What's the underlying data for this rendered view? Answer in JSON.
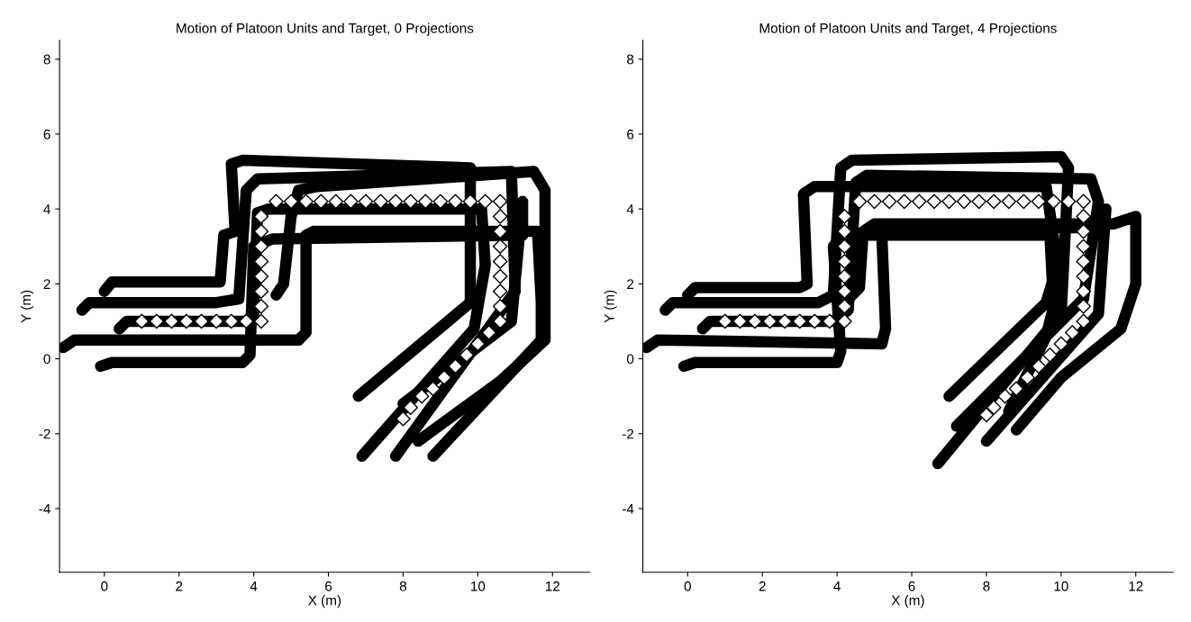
{
  "chart_data": [
    {
      "type": "line",
      "title": "Motion of Platoon Units and Target, 0 Projections",
      "xlabel": "X (m)",
      "ylabel": "Y (m)",
      "xlim": [
        -1.2,
        13
      ],
      "ylim": [
        -5.7,
        8.5
      ],
      "xticks": [
        0,
        2,
        4,
        6,
        8,
        10,
        12
      ],
      "yticks": [
        -4,
        -2,
        0,
        2,
        4,
        6,
        8
      ],
      "grid": false,
      "marker": "none",
      "line_style": "solid",
      "series": [
        {
          "type": "line",
          "color": "#000000",
          "x": [
            0,
            0.2,
            3.1,
            3.2,
            3.5,
            3.4,
            3.7,
            9.8,
            9.8,
            6.8
          ],
          "values": [
            1.8,
            2.05,
            2.05,
            3.3,
            3.4,
            5.2,
            5.3,
            5.1,
            1.5,
            -1.0
          ]
        },
        {
          "type": "line",
          "color": "#000000",
          "x": [
            -0.6,
            -0.4,
            3.0,
            3.6,
            3.8,
            4.1,
            10.9,
            11.0,
            7.8
          ],
          "values": [
            1.3,
            1.5,
            1.5,
            1.6,
            4.5,
            4.8,
            5.0,
            1.8,
            -2.6
          ]
        },
        {
          "type": "line",
          "color": "#000000",
          "x": [
            0.4,
            0.6,
            3.8,
            4.0,
            4.1,
            4.4,
            10.1,
            10.2,
            9.9,
            6.9
          ],
          "values": [
            0.8,
            1.0,
            1.0,
            1.2,
            3.9,
            4.0,
            4.0,
            2.5,
            0.8,
            -2.6
          ]
        },
        {
          "type": "line",
          "color": "#000000",
          "x": [
            -1.1,
            -0.8,
            5.2,
            5.4,
            5.4,
            5.6,
            11.6,
            11.7,
            11.7,
            8.8
          ],
          "values": [
            0.3,
            0.5,
            0.5,
            0.7,
            3.3,
            3.4,
            3.4,
            1.5,
            0.5,
            -2.6
          ]
        },
        {
          "type": "line",
          "color": "#000000",
          "x": [
            -0.1,
            0.2,
            3.7,
            3.9,
            4.0,
            4.5,
            11.2,
            11.2,
            10.9,
            8.0
          ],
          "values": [
            -0.2,
            -0.1,
            -0.1,
            0.1,
            3.0,
            3.2,
            3.3,
            4.2,
            1.0,
            -1.2
          ]
        },
        {
          "type": "line",
          "color": "#000000",
          "x": [
            4.6,
            4.8,
            5.0,
            5.2,
            5.7,
            11.5,
            11.8,
            11.8,
            10.6,
            8.4
          ],
          "values": [
            1.7,
            2.0,
            3.8,
            4.5,
            4.6,
            5.0,
            4.5,
            0.5,
            -0.6,
            -2.2
          ]
        },
        {
          "type": "scatter",
          "color": "#ffffff",
          "marker": "diamond",
          "x": [
            1,
            1.4,
            1.8,
            2.2,
            2.6,
            3,
            3.4,
            3.8,
            4.2,
            4.2,
            4.2,
            4.2,
            4.2,
            4.2,
            4.2,
            4.2,
            4.6,
            5,
            5.4,
            5.8,
            6.2,
            6.6,
            7,
            7.4,
            7.8,
            8.2,
            8.6,
            9,
            9.4,
            9.8,
            10.2,
            10.6,
            10.6,
            10.6,
            10.6,
            10.6,
            10.6,
            10.6,
            10.6,
            10.6,
            10.3,
            10,
            9.7,
            9.4,
            9.1,
            8.8,
            8.5,
            8.2,
            8
          ],
          "values": [
            1,
            1,
            1,
            1,
            1,
            1,
            1,
            1,
            1,
            1.4,
            1.8,
            2.2,
            2.6,
            3,
            3.4,
            3.8,
            4.2,
            4.2,
            4.2,
            4.2,
            4.2,
            4.2,
            4.2,
            4.2,
            4.2,
            4.2,
            4.2,
            4.2,
            4.2,
            4.2,
            4.2,
            4.2,
            3.8,
            3.4,
            3,
            2.6,
            2.2,
            1.8,
            1.4,
            1,
            0.7,
            0.4,
            0.1,
            -0.2,
            -0.5,
            -0.8,
            -1,
            -1.3,
            -1.6
          ]
        }
      ]
    },
    {
      "type": "line",
      "title": "Motion of Platoon Units and Target, 4 Projections",
      "xlabel": "X (m)",
      "ylabel": "Y (m)",
      "xlim": [
        -1.2,
        13
      ],
      "ylim": [
        -5.7,
        8.5
      ],
      "xticks": [
        0,
        2,
        4,
        6,
        8,
        10,
        12
      ],
      "yticks": [
        -4,
        -2,
        0,
        2,
        4,
        6,
        8
      ],
      "grid": false,
      "marker": "none",
      "line_style": "solid",
      "series": [
        {
          "type": "line",
          "color": "#000000",
          "x": [
            0,
            0.2,
            3.0,
            3.2,
            3.1,
            3.4,
            9.6,
            9.9,
            9.6,
            7.0
          ],
          "values": [
            1.7,
            1.9,
            1.9,
            2.0,
            4.4,
            4.6,
            4.6,
            2.5,
            1.5,
            -1.0
          ]
        },
        {
          "type": "line",
          "color": "#000000",
          "x": [
            -0.6,
            -0.4,
            3.5,
            3.9,
            4.1,
            4.4,
            10.0,
            10.2,
            10.0,
            6.7
          ],
          "values": [
            1.3,
            1.5,
            1.5,
            1.7,
            5.1,
            5.3,
            5.4,
            5.1,
            1.2,
            -2.8
          ]
        },
        {
          "type": "line",
          "color": "#000000",
          "x": [
            0.4,
            0.6,
            3.9,
            4.3,
            4.5,
            4.8,
            10.8,
            11.0,
            10.6,
            7.2
          ],
          "values": [
            0.8,
            1.0,
            1.0,
            1.3,
            4.7,
            4.9,
            4.8,
            4.2,
            1.6,
            -1.8
          ]
        },
        {
          "type": "line",
          "color": "#000000",
          "x": [
            -1.1,
            -0.8,
            5.2,
            5.3,
            5.2,
            5.5,
            11.1,
            11.2,
            11.0,
            8.0
          ],
          "values": [
            0.3,
            0.5,
            0.4,
            0.8,
            3.3,
            3.5,
            3.5,
            4.0,
            1.2,
            -2.2
          ]
        },
        {
          "type": "line",
          "color": "#000000",
          "x": [
            -0.1,
            0.2,
            4.0,
            4.1,
            3.9,
            4.2,
            9.7,
            9.8,
            9.6,
            8.6
          ],
          "values": [
            -0.2,
            -0.1,
            -0.1,
            0.2,
            3.0,
            3.3,
            3.3,
            1.4,
            0.6,
            -1.4
          ]
        },
        {
          "type": "line",
          "color": "#000000",
          "x": [
            4.3,
            4.6,
            4.7,
            5.0,
            11.4,
            12.0,
            12.0,
            11.6,
            10.0,
            8.8
          ],
          "values": [
            1.6,
            1.9,
            3.4,
            3.6,
            3.6,
            3.8,
            2.0,
            0.8,
            -0.5,
            -1.9
          ]
        },
        {
          "type": "scatter",
          "color": "#ffffff",
          "marker": "diamond",
          "x": [
            1,
            1.4,
            1.8,
            2.2,
            2.6,
            3,
            3.4,
            3.8,
            4.2,
            4.2,
            4.2,
            4.2,
            4.2,
            4.2,
            4.2,
            4.2,
            4.6,
            5,
            5.4,
            5.8,
            6.2,
            6.6,
            7,
            7.4,
            7.8,
            8.2,
            8.6,
            9,
            9.4,
            9.8,
            10.2,
            10.6,
            10.6,
            10.6,
            10.6,
            10.6,
            10.6,
            10.6,
            10.6,
            10.6,
            10.3,
            10,
            9.7,
            9.4,
            9.1,
            8.8,
            8.5,
            8.2,
            8
          ],
          "values": [
            1,
            1,
            1,
            1,
            1,
            1,
            1,
            1,
            1,
            1.4,
            1.8,
            2.2,
            2.6,
            3,
            3.4,
            3.8,
            4.2,
            4.2,
            4.2,
            4.2,
            4.2,
            4.2,
            4.2,
            4.2,
            4.2,
            4.2,
            4.2,
            4.2,
            4.2,
            4.2,
            4.2,
            4.2,
            3.8,
            3.4,
            3,
            2.6,
            2.2,
            1.8,
            1.4,
            1,
            0.7,
            0.4,
            0.1,
            -0.2,
            -0.5,
            -0.8,
            -1,
            -1.3,
            -1.5
          ]
        }
      ]
    }
  ]
}
